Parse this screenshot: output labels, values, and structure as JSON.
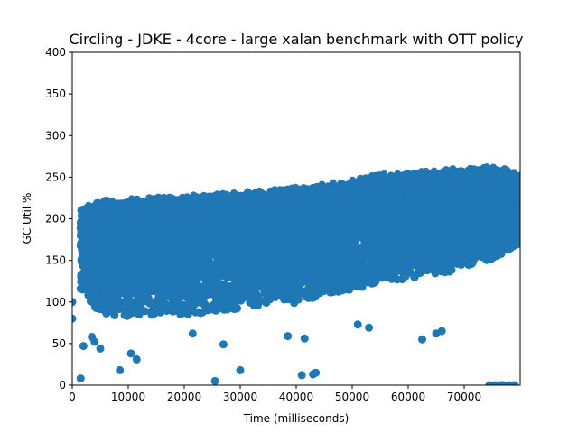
{
  "chart_data": {
    "type": "scatter",
    "title": "Circling - JDKE - 4core -  large xalan benchmark with OTT policy",
    "xlabel": "Time (milliseconds)",
    "ylabel": "GC Util %",
    "xlim": [
      0,
      80000
    ],
    "ylim": [
      0,
      400
    ],
    "x_ticks": [
      "0",
      "10000",
      "20000",
      "30000",
      "40000",
      "50000",
      "60000",
      "70000"
    ],
    "y_ticks": [
      "0",
      "50",
      "100",
      "150",
      "200",
      "250",
      "300",
      "350",
      "400"
    ],
    "grid": false,
    "point_color": "#1f77b4",
    "upper_envelope": [
      [
        2000,
        212
      ],
      [
        5000,
        218
      ],
      [
        10000,
        220
      ],
      [
        15000,
        222
      ],
      [
        20000,
        224
      ],
      [
        25000,
        226
      ],
      [
        30000,
        228
      ],
      [
        35000,
        230
      ],
      [
        40000,
        234
      ],
      [
        45000,
        238
      ],
      [
        50000,
        243
      ],
      [
        55000,
        250
      ],
      [
        60000,
        252
      ],
      [
        65000,
        254
      ],
      [
        70000,
        258
      ],
      [
        75000,
        260
      ],
      [
        80000,
        252
      ]
    ],
    "lower_envelope": [
      [
        2000,
        110
      ],
      [
        5000,
        85
      ],
      [
        10000,
        82
      ],
      [
        15000,
        83
      ],
      [
        20000,
        84
      ],
      [
        25000,
        86
      ],
      [
        30000,
        92
      ],
      [
        35000,
        95
      ],
      [
        40000,
        98
      ],
      [
        45000,
        106
      ],
      [
        50000,
        115
      ],
      [
        55000,
        122
      ],
      [
        60000,
        128
      ],
      [
        65000,
        133
      ],
      [
        70000,
        140
      ],
      [
        75000,
        150
      ],
      [
        80000,
        170
      ]
    ],
    "outliers": [
      [
        0,
        100
      ],
      [
        0,
        80
      ],
      [
        1500,
        8
      ],
      [
        2000,
        47
      ],
      [
        3500,
        58
      ],
      [
        4000,
        52
      ],
      [
        5000,
        44
      ],
      [
        8500,
        18
      ],
      [
        10500,
        38
      ],
      [
        11500,
        31
      ],
      [
        21500,
        62
      ],
      [
        25500,
        5
      ],
      [
        27000,
        49
      ],
      [
        30000,
        18
      ],
      [
        38500,
        59
      ],
      [
        41000,
        12
      ],
      [
        41500,
        56
      ],
      [
        43000,
        13
      ],
      [
        43500,
        15
      ],
      [
        51000,
        73
      ],
      [
        53000,
        69
      ],
      [
        62500,
        55
      ],
      [
        65000,
        62
      ],
      [
        66000,
        65
      ],
      [
        74500,
        0
      ],
      [
        75500,
        0
      ],
      [
        76500,
        0
      ],
      [
        77000,
        0
      ],
      [
        78000,
        0
      ],
      [
        79000,
        0
      ]
    ]
  }
}
